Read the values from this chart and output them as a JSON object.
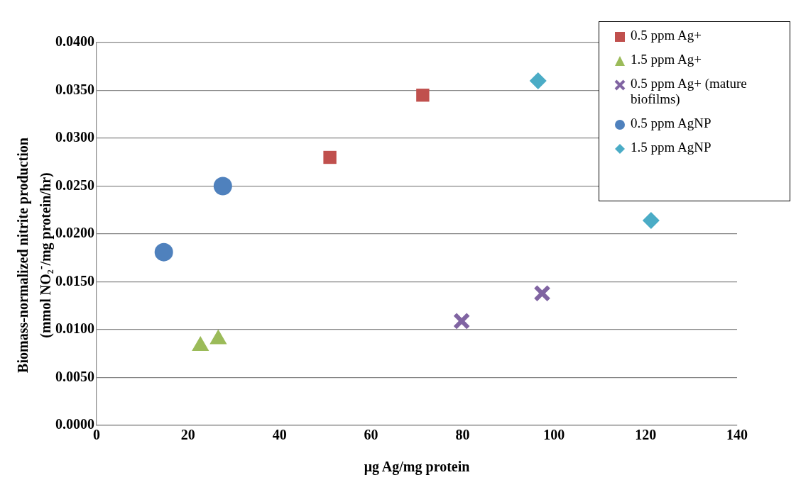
{
  "chart_data": {
    "type": "scatter",
    "xlabel": "μg Ag/mg protein",
    "ylabel": "Biomass-normalized nitrite production (mmol NO₂$^{-}$/mg protein/hr)",
    "series": [
      {
        "name": "0.5 ppm Ag+",
        "color": "#c0504d",
        "marker": "square",
        "x": [
          51.0,
          71.3
        ],
        "values": [
          0.028,
          0.0345
        ]
      },
      {
        "name": "1.5 ppm Ag+",
        "color": "#9bbb59",
        "marker": "triangle",
        "x": [
          22.7,
          26.6
        ],
        "values": [
          0.0083,
          0.009
        ]
      },
      {
        "name": "0.5 ppm Ag+ (mature biofilms)",
        "color": "#8064a2",
        "marker": "cross",
        "x": [
          79.8,
          97.4
        ],
        "values": [
          0.0109,
          0.0138
        ]
      },
      {
        "name": "0.5 ppm AgNP",
        "color": "#4f81bd",
        "marker": "circle",
        "x": [
          14.7,
          27.6
        ],
        "values": [
          0.0181,
          0.025
        ]
      },
      {
        "name": "1.5 ppm AgNP",
        "color": "#4bacc6",
        "marker": "diamond",
        "x": [
          96.5,
          121.2
        ],
        "values": [
          0.036,
          0.0214
        ]
      }
    ],
    "xlim": [
      0,
      140
    ],
    "xticks": [
      0,
      20,
      40,
      60,
      80,
      100,
      120,
      140
    ],
    "ylim": [
      0,
      0.04
    ],
    "yticks": [
      {
        "value": 0,
        "label": "0.0000"
      },
      {
        "value": 0.005,
        "label": "0.0050"
      },
      {
        "value": 0.01,
        "label": "0.0100"
      },
      {
        "value": 0.015,
        "label": "0.0150"
      },
      {
        "value": 0.02,
        "label": "0.0200"
      },
      {
        "value": 0.025,
        "label": "0.0250"
      },
      {
        "value": 0.03,
        "label": "0.0300"
      },
      {
        "value": 0.035,
        "label": "0.0350"
      },
      {
        "value": 0.04,
        "label": "0.0400"
      }
    ],
    "grid": "y",
    "legend": "top right"
  }
}
